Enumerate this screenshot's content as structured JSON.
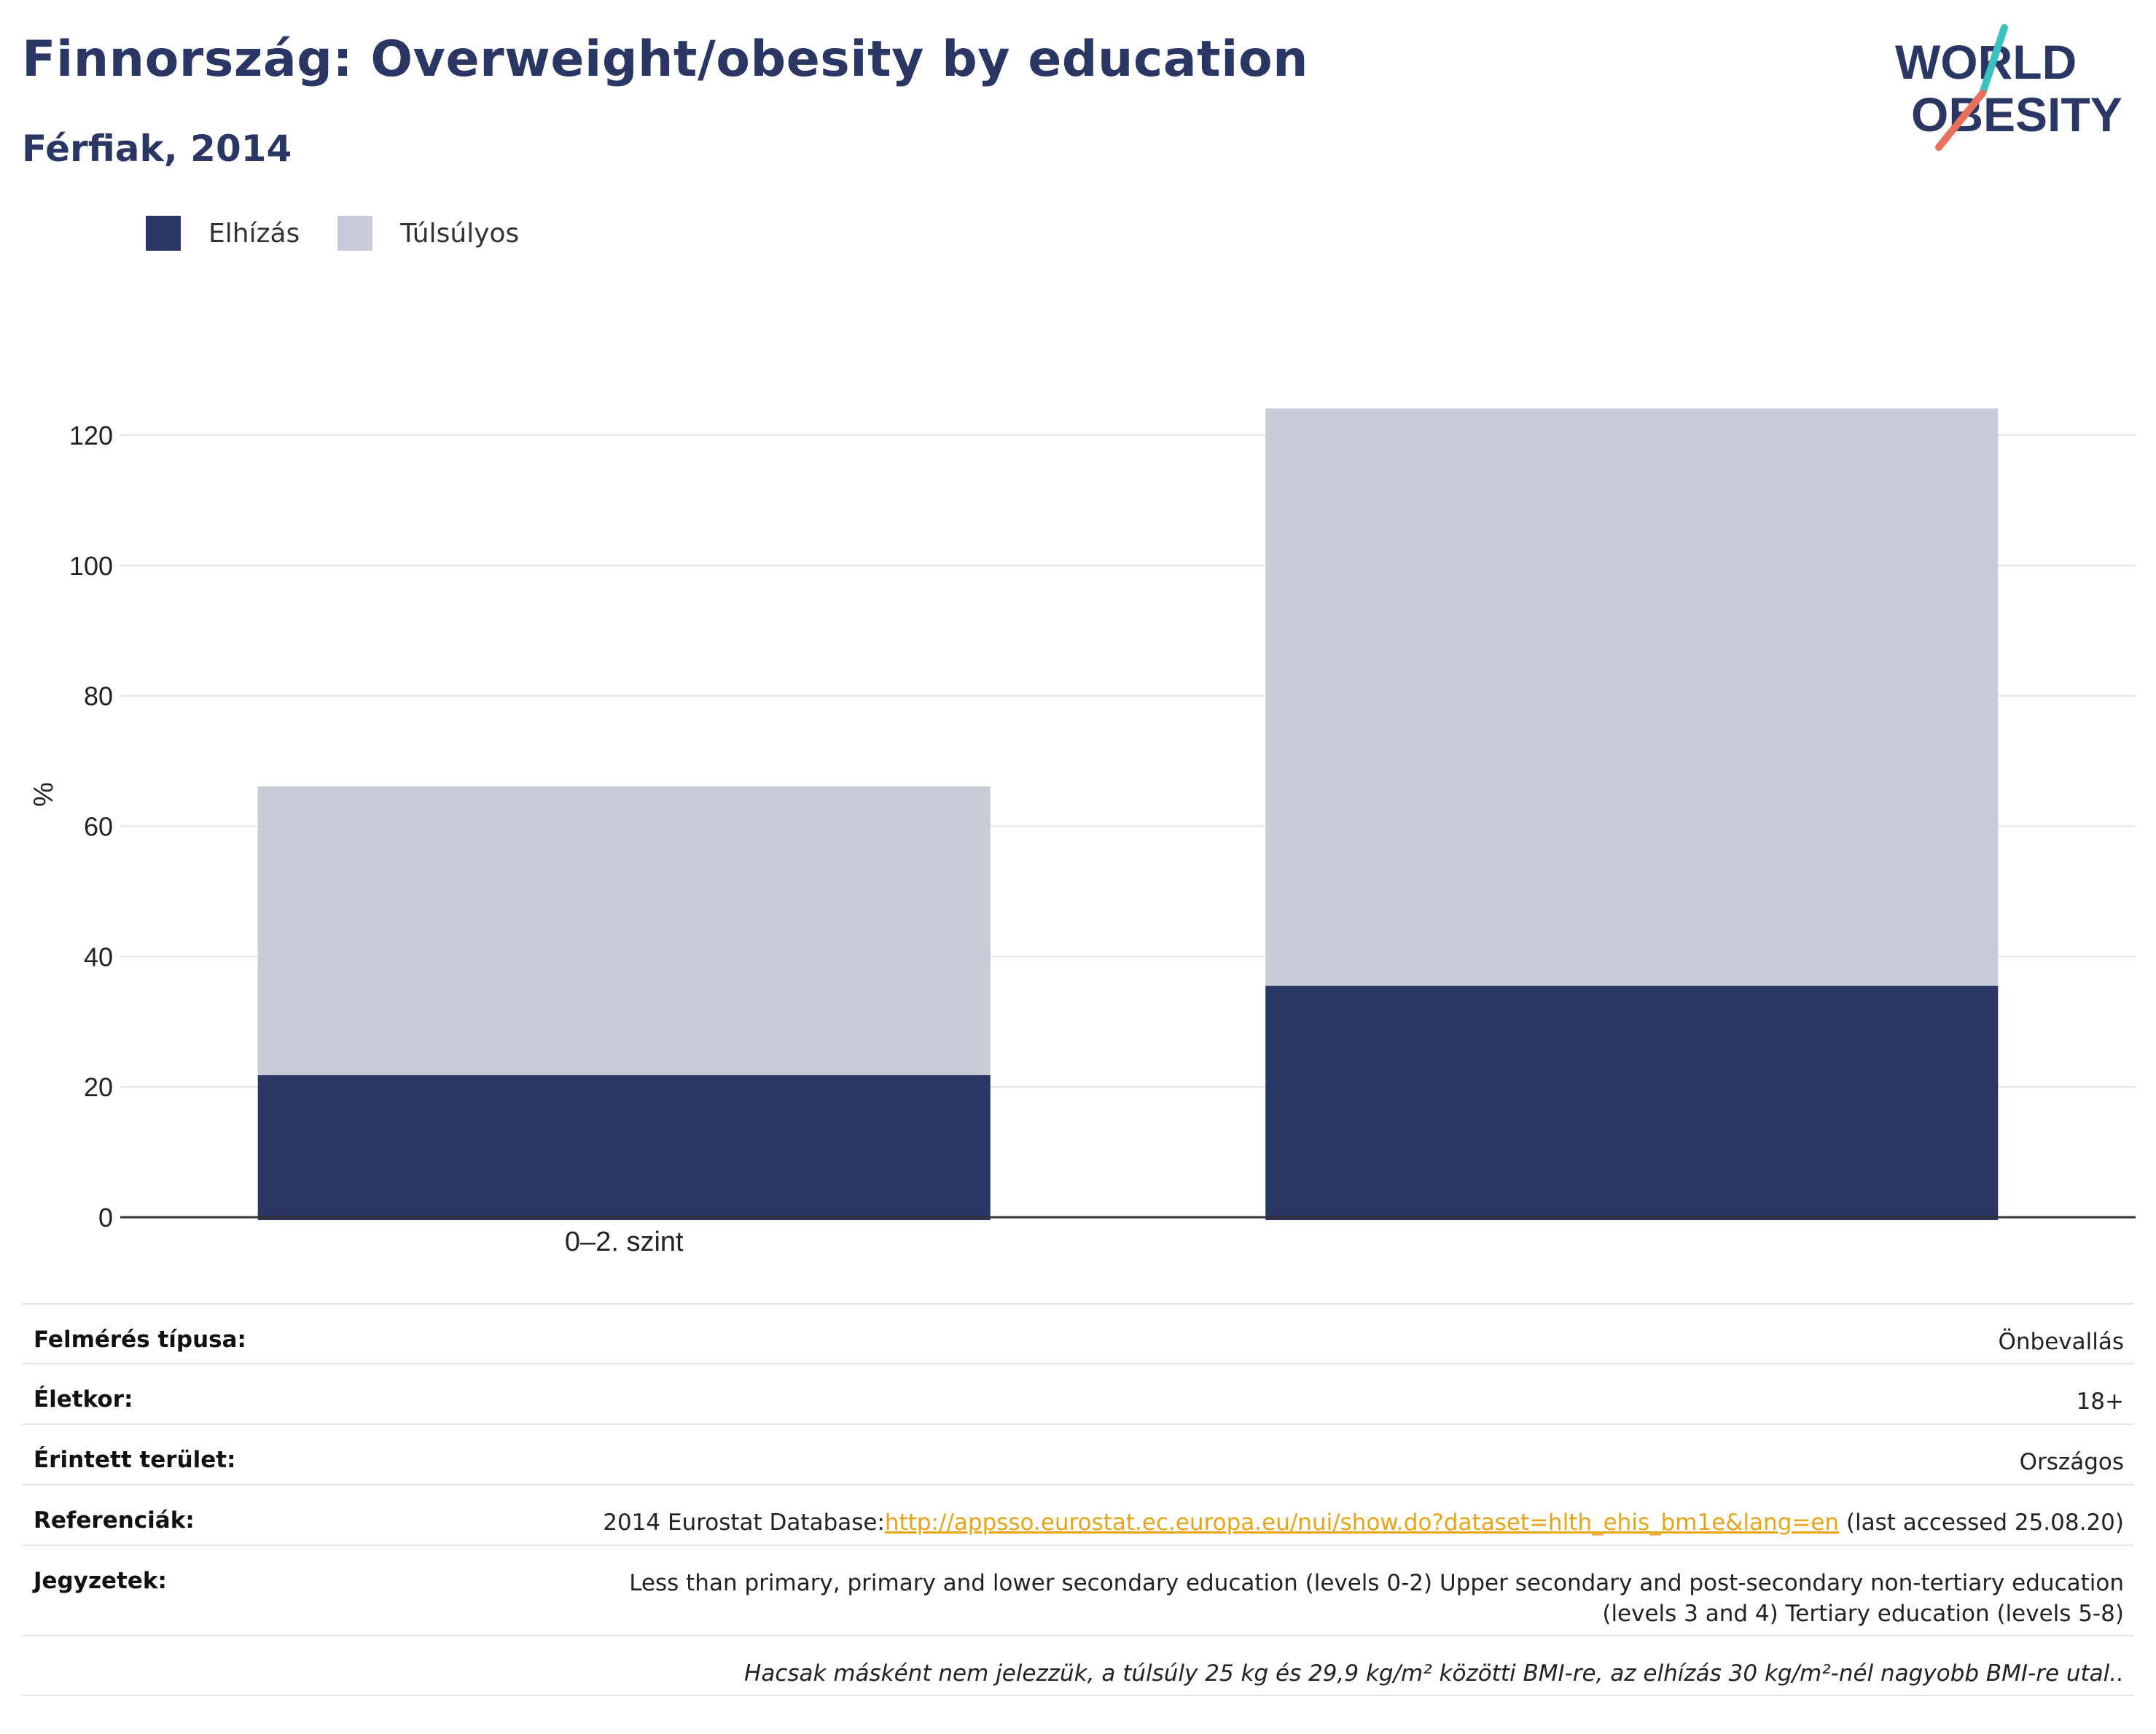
{
  "header": {
    "title": "Finnország: Overweight/obesity by education",
    "subtitle": "Férfiak, 2014"
  },
  "logo": {
    "line1": "WORLD",
    "line2": "OBESITY",
    "slash_top_color": "#3cc0c0",
    "slash_bottom_color": "#e8705a"
  },
  "legend": [
    {
      "label": "Elhízás",
      "color": "#2a3663"
    },
    {
      "label": "Túlsúlyos",
      "color": "#c9ccd8"
    }
  ],
  "chart_data": {
    "type": "bar",
    "stacked": true,
    "categories": [
      "0–2. szint",
      ""
    ],
    "series": [
      {
        "name": "Elhízás",
        "color": "#2a3663",
        "values": [
          21.8,
          35.5
        ]
      },
      {
        "name": "Túlsúlyos",
        "color": "#c9ccd8",
        "values": [
          44.3,
          88.6
        ]
      }
    ],
    "ylabel": "%",
    "ylim": [
      0,
      120
    ],
    "yticks": [
      0,
      20,
      40,
      60,
      80,
      100,
      120
    ],
    "grid": true,
    "legend_position": "top-left"
  },
  "info": {
    "survey_type": {
      "label": "Felmérés típusa:",
      "value": "Önbevallás"
    },
    "age": {
      "label": "Életkor:",
      "value": "18+"
    },
    "area": {
      "label": "Érintett terület:",
      "value": "Országos"
    },
    "references": {
      "label": "Referenciák:",
      "prefix": "2014 Eurostat Database:",
      "link": "http://appsso.eurostat.ec.europa.eu/nui/show.do?dataset=hlth_ehis_bm1e&lang=en",
      "suffix": " (last accessed 25.08.20)"
    },
    "notes": {
      "label": "Jegyzetek:",
      "line1": "Less than primary, primary and lower secondary education (levels 0-2) Upper secondary and post-secondary non-tertiary education",
      "line2": "(levels 3 and 4) Tertiary education (levels 5-8)"
    },
    "footnote": "Hacsak másként nem jelezzük, a túlsúly 25 kg és 29,9 kg/m² közötti BMI-re, az elhízás 30 kg/m²-nél nagyobb BMI-re utal.."
  }
}
